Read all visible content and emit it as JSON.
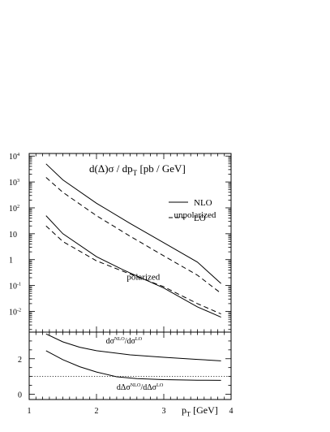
{
  "chart_data": [
    {
      "type": "line",
      "title": "d(Δ)σ / dp_T  [pb / GeV]",
      "title_parts": {
        "main": "d(Δ)σ / dp",
        "sub": "T",
        "unit": "[pb / GeV]"
      },
      "xlim": [
        1,
        4
      ],
      "ylim_log10": [
        -2.8,
        4.1
      ],
      "yscale": "log",
      "legend": {
        "placement": "top-right",
        "entries": [
          {
            "label": "NLO",
            "style": "solid"
          },
          {
            "label": "LO",
            "style": "dashed"
          }
        ]
      },
      "yticks": [
        {
          "value": 10000,
          "base": "10",
          "exp": "4"
        },
        {
          "value": 1000,
          "base": "10",
          "exp": "3"
        },
        {
          "value": 100,
          "base": "10",
          "exp": "2"
        },
        {
          "value": 10,
          "base": "10",
          "exp": ""
        },
        {
          "value": 1,
          "base": "1",
          "exp": ""
        },
        {
          "value": 0.1,
          "base": "10",
          "exp": "-1"
        },
        {
          "value": 0.01,
          "base": "10",
          "exp": "-2"
        }
      ],
      "annotations": [
        {
          "text": "unpolarized",
          "x": 3.15,
          "y": 1.62
        },
        {
          "text": "polarized",
          "x": 2.45,
          "y": -0.77
        }
      ],
      "series": [
        {
          "group": "unpolarized",
          "style": "solid",
          "x": [
            1.25,
            1.5,
            2.0,
            2.5,
            3.0,
            3.5,
            3.85
          ],
          "y": [
            5000,
            1200,
            150,
            25,
            4.5,
            0.8,
            0.12
          ]
        },
        {
          "group": "unpolarized",
          "style": "dashed",
          "x": [
            1.25,
            1.5,
            2.0,
            2.5,
            3.0,
            3.5,
            3.85
          ],
          "y": [
            1500,
            400,
            50,
            8,
            1.4,
            0.25,
            0.05
          ]
        },
        {
          "group": "polarized",
          "style": "solid",
          "x": [
            1.25,
            1.5,
            2.0,
            2.4,
            3.0,
            3.5,
            3.85
          ],
          "y": [
            50,
            10,
            1.3,
            0.4,
            0.08,
            0.015,
            0.006
          ]
        },
        {
          "group": "polarized",
          "style": "dashed",
          "x": [
            1.25,
            1.5,
            2.0,
            2.4,
            3.0,
            3.5,
            3.85
          ],
          "y": [
            20,
            5,
            0.9,
            0.35,
            0.09,
            0.02,
            0.008
          ]
        }
      ]
    },
    {
      "type": "line",
      "xlabel_parts": {
        "main": "p",
        "sub": "T",
        "unit": " [GeV]"
      },
      "xlim": [
        1,
        4
      ],
      "ylim": [
        -0.3,
        3.5
      ],
      "xticks": [
        1,
        2,
        3,
        4
      ],
      "yticks": [
        0,
        2
      ],
      "reference_line": {
        "y": 1,
        "style": "dotted"
      },
      "labels": [
        {
          "text": "dσ^NLO/dσ^LO",
          "parts": [
            "dσ",
            "NLO",
            "/dσ",
            "LO"
          ],
          "x": 2.14,
          "y": 2.85
        },
        {
          "text": "dΔσ^NLO/dΔσ^LO",
          "parts": [
            "dΔσ",
            "NLO",
            "/dΔσ",
            "LO"
          ],
          "x": 2.3,
          "y": 0.25
        }
      ],
      "series": [
        {
          "name": "dσ^NLO/dσ^LO",
          "style": "solid",
          "x": [
            1.25,
            1.5,
            1.75,
            2.0,
            2.5,
            3.0,
            3.5,
            3.85
          ],
          "y": [
            3.4,
            2.95,
            2.65,
            2.45,
            2.22,
            2.08,
            1.96,
            1.88
          ]
        },
        {
          "name": "dΔσ^NLO/dΔσ^LO",
          "style": "solid",
          "x": [
            1.25,
            1.5,
            1.75,
            2.0,
            2.3,
            2.6,
            3.0,
            3.5,
            3.85
          ],
          "y": [
            2.45,
            1.95,
            1.55,
            1.25,
            0.98,
            0.88,
            0.82,
            0.79,
            0.78
          ]
        }
      ]
    }
  ]
}
